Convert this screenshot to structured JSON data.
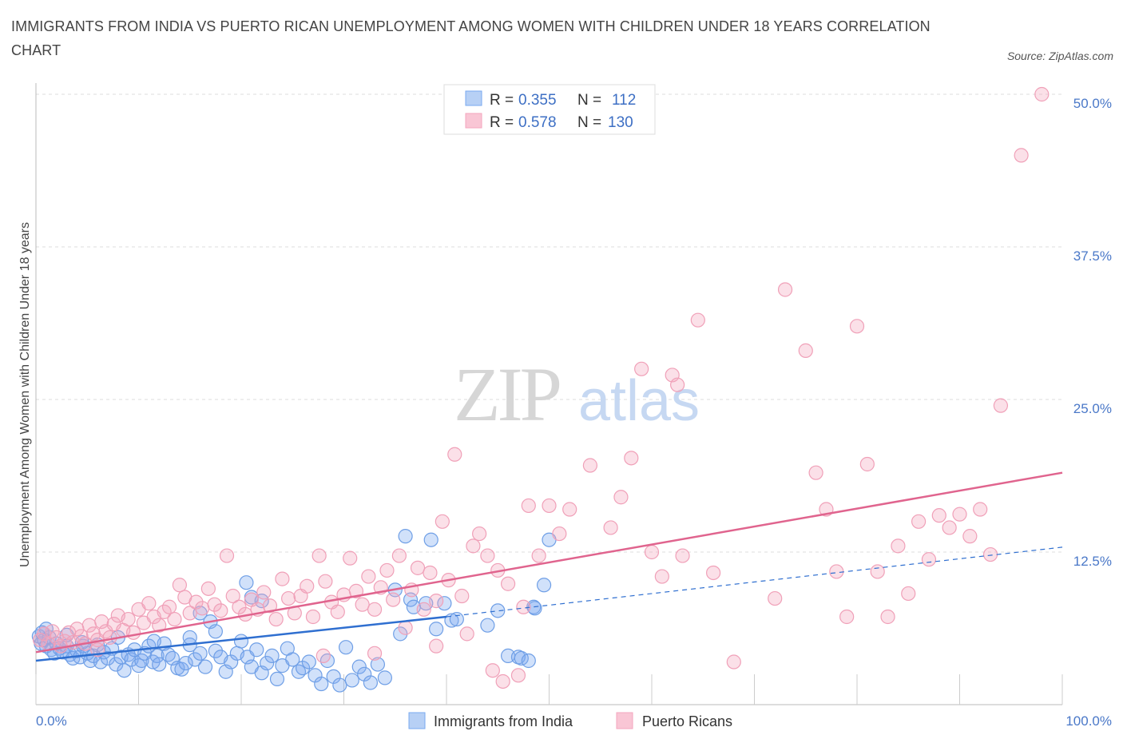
{
  "title": "IMMIGRANTS FROM INDIA VS PUERTO RICAN UNEMPLOYMENT AMONG WOMEN WITH CHILDREN UNDER 18 YEARS CORRELATION CHART",
  "source": "Source: ZipAtlas.com",
  "colors": {
    "india": "#7aaaf0",
    "india_line": "#2f6fd0",
    "pr": "#f4a6be",
    "pr_line": "#e0648e",
    "tick": "#4a78c8"
  },
  "watermark": {
    "zip": "ZIP",
    "atlas": "atlas"
  },
  "legend": {
    "r_label": "R =",
    "n_label": "N =",
    "rows": [
      {
        "r": "0.355",
        "n": "112"
      },
      {
        "r": "0.578",
        "n": "130"
      }
    ]
  },
  "chart_data": {
    "type": "scatter",
    "title": "IMMIGRANTS FROM INDIA VS PUERTO RICAN UNEMPLOYMENT AMONG WOMEN WITH CHILDREN UNDER 18 YEARS CORRELATION CHART",
    "xlabel": "",
    "ylabel": "Unemployment Among Women with Children Under 18 years",
    "xlim": [
      0,
      100
    ],
    "ylim": [
      0,
      50
    ],
    "x_tick_labels": [
      "0.0%",
      "100.0%"
    ],
    "y_tick_labels": [
      "12.5%",
      "25.0%",
      "37.5%",
      "50.0%"
    ],
    "y_ticks": [
      12.5,
      25,
      37.5,
      50
    ],
    "grid": true,
    "legend_position": "top-center",
    "series": [
      {
        "name": "Immigrants from India",
        "R": 0.355,
        "N": 112,
        "trend": {
          "x0": 0,
          "y0": 3.6,
          "x1": 40,
          "y1": 7.2,
          "x_dash_end": 100,
          "y_dash_end": 12.9
        },
        "points": [
          [
            0.3,
            5.6
          ],
          [
            0.5,
            5.0
          ],
          [
            0.8,
            5.3
          ],
          [
            1.0,
            4.8
          ],
          [
            1.3,
            5.5
          ],
          [
            1.5,
            4.5
          ],
          [
            1.8,
            4.2
          ],
          [
            2.0,
            5.0
          ],
          [
            2.3,
            4.6
          ],
          [
            2.6,
            4.3
          ],
          [
            3.0,
            4.8
          ],
          [
            3.3,
            4.1
          ],
          [
            3.6,
            3.8
          ],
          [
            4.0,
            4.4
          ],
          [
            4.3,
            3.9
          ],
          [
            4.6,
            4.8
          ],
          [
            5.0,
            4.2
          ],
          [
            5.3,
            3.6
          ],
          [
            5.6,
            4.0
          ],
          [
            6.0,
            4.9
          ],
          [
            6.3,
            3.5
          ],
          [
            6.6,
            4.3
          ],
          [
            7.0,
            3.8
          ],
          [
            7.4,
            4.6
          ],
          [
            7.8,
            3.3
          ],
          [
            8.0,
            5.5
          ],
          [
            8.3,
            3.9
          ],
          [
            8.6,
            2.8
          ],
          [
            9.0,
            4.1
          ],
          [
            9.3,
            3.7
          ],
          [
            9.6,
            4.5
          ],
          [
            10.0,
            3.2
          ],
          [
            10.3,
            3.6
          ],
          [
            10.6,
            4.2
          ],
          [
            11.0,
            4.8
          ],
          [
            11.4,
            3.5
          ],
          [
            11.8,
            4.0
          ],
          [
            12.0,
            3.3
          ],
          [
            12.5,
            5.0
          ],
          [
            12.9,
            4.1
          ],
          [
            13.3,
            3.8
          ],
          [
            13.8,
            3.0
          ],
          [
            14.2,
            2.9
          ],
          [
            14.6,
            3.4
          ],
          [
            15.0,
            4.9
          ],
          [
            15.5,
            3.7
          ],
          [
            16.0,
            4.2
          ],
          [
            16.5,
            3.1
          ],
          [
            17.0,
            6.8
          ],
          [
            17.5,
            4.4
          ],
          [
            18.0,
            3.9
          ],
          [
            18.5,
            2.7
          ],
          [
            19.0,
            3.5
          ],
          [
            19.6,
            4.2
          ],
          [
            20.0,
            5.2
          ],
          [
            20.6,
            3.9
          ],
          [
            21.0,
            3.1
          ],
          [
            21.5,
            4.5
          ],
          [
            22.0,
            2.6
          ],
          [
            22.5,
            3.4
          ],
          [
            23.0,
            4.0
          ],
          [
            23.5,
            2.1
          ],
          [
            24.0,
            3.2
          ],
          [
            24.5,
            4.6
          ],
          [
            25.0,
            3.7
          ],
          [
            25.6,
            2.7
          ],
          [
            26.0,
            3.0
          ],
          [
            26.6,
            3.5
          ],
          [
            27.2,
            2.4
          ],
          [
            27.8,
            1.7
          ],
          [
            28.4,
            3.6
          ],
          [
            29.0,
            2.3
          ],
          [
            29.6,
            1.6
          ],
          [
            30.2,
            4.7
          ],
          [
            30.8,
            2.0
          ],
          [
            31.5,
            3.1
          ],
          [
            32.0,
            2.5
          ],
          [
            32.6,
            1.8
          ],
          [
            33.3,
            3.3
          ],
          [
            34.0,
            2.2
          ],
          [
            35.5,
            5.8
          ],
          [
            36.5,
            8.6
          ],
          [
            36.8,
            8.0
          ],
          [
            35.0,
            9.4
          ],
          [
            38.0,
            8.3
          ],
          [
            39.0,
            6.2
          ],
          [
            39.8,
            8.3
          ],
          [
            40.5,
            6.9
          ],
          [
            41.0,
            7.0
          ],
          [
            44.0,
            6.5
          ],
          [
            45.0,
            7.7
          ],
          [
            46.0,
            4.0
          ],
          [
            47.0,
            3.9
          ],
          [
            47.3,
            3.8
          ],
          [
            48.0,
            3.6
          ],
          [
            48.5,
            8.0
          ],
          [
            48.6,
            7.9
          ],
          [
            49.5,
            9.8
          ],
          [
            50.0,
            13.5
          ],
          [
            38.5,
            13.5
          ],
          [
            36.0,
            13.8
          ],
          [
            20.5,
            10.0
          ],
          [
            21.0,
            8.8
          ],
          [
            22.0,
            8.5
          ],
          [
            16.0,
            7.5
          ],
          [
            17.5,
            6.0
          ],
          [
            15.0,
            5.5
          ],
          [
            11.5,
            5.2
          ],
          [
            3.0,
            5.7
          ],
          [
            1.0,
            6.2
          ],
          [
            0.6,
            5.9
          ],
          [
            4.5,
            5.1
          ]
        ]
      },
      {
        "name": "Puerto Ricans",
        "R": 0.578,
        "N": 130,
        "trend": {
          "x0": 0,
          "y0": 4.3,
          "x1": 100,
          "y1": 19.0
        },
        "points": [
          [
            0.4,
            5.3
          ],
          [
            0.8,
            5.8
          ],
          [
            1.2,
            5.0
          ],
          [
            1.6,
            6.0
          ],
          [
            2.0,
            5.5
          ],
          [
            2.4,
            4.8
          ],
          [
            2.8,
            5.2
          ],
          [
            3.2,
            5.9
          ],
          [
            3.6,
            5.1
          ],
          [
            4.0,
            6.2
          ],
          [
            4.4,
            5.6
          ],
          [
            4.8,
            5.0
          ],
          [
            5.2,
            6.5
          ],
          [
            5.6,
            5.8
          ],
          [
            6.0,
            5.3
          ],
          [
            6.4,
            6.8
          ],
          [
            6.8,
            6.0
          ],
          [
            7.2,
            5.5
          ],
          [
            7.6,
            6.6
          ],
          [
            8.0,
            7.3
          ],
          [
            8.5,
            6.1
          ],
          [
            9.0,
            7.0
          ],
          [
            9.5,
            5.9
          ],
          [
            10.0,
            7.8
          ],
          [
            10.5,
            6.7
          ],
          [
            11.0,
            8.3
          ],
          [
            11.5,
            7.2
          ],
          [
            12.0,
            6.5
          ],
          [
            12.5,
            7.6
          ],
          [
            13.0,
            8.0
          ],
          [
            13.5,
            7.0
          ],
          [
            14.0,
            9.8
          ],
          [
            14.5,
            8.8
          ],
          [
            15.0,
            7.5
          ],
          [
            15.6,
            8.4
          ],
          [
            16.2,
            7.9
          ],
          [
            16.8,
            9.5
          ],
          [
            17.4,
            8.2
          ],
          [
            18.0,
            7.7
          ],
          [
            18.6,
            12.2
          ],
          [
            19.2,
            8.9
          ],
          [
            19.8,
            8.0
          ],
          [
            20.4,
            7.4
          ],
          [
            21.0,
            8.6
          ],
          [
            21.6,
            7.8
          ],
          [
            22.2,
            9.2
          ],
          [
            22.8,
            8.1
          ],
          [
            23.4,
            7.0
          ],
          [
            24.0,
            10.3
          ],
          [
            24.6,
            8.7
          ],
          [
            25.2,
            7.5
          ],
          [
            25.8,
            8.9
          ],
          [
            26.4,
            9.7
          ],
          [
            27.0,
            7.2
          ],
          [
            27.6,
            12.2
          ],
          [
            28.2,
            10.1
          ],
          [
            28.8,
            8.4
          ],
          [
            29.4,
            7.6
          ],
          [
            30.0,
            9.0
          ],
          [
            30.6,
            12.0
          ],
          [
            31.2,
            9.3
          ],
          [
            31.8,
            8.2
          ],
          [
            32.4,
            10.5
          ],
          [
            33.0,
            7.8
          ],
          [
            33.6,
            9.6
          ],
          [
            34.2,
            11.0
          ],
          [
            34.8,
            8.6
          ],
          [
            35.4,
            12.2
          ],
          [
            36.0,
            6.3
          ],
          [
            36.6,
            9.4
          ],
          [
            37.2,
            11.2
          ],
          [
            37.8,
            7.8
          ],
          [
            38.4,
            10.8
          ],
          [
            39.0,
            8.5
          ],
          [
            39.6,
            15.0
          ],
          [
            40.2,
            10.2
          ],
          [
            40.8,
            20.5
          ],
          [
            41.5,
            8.9
          ],
          [
            42.0,
            5.8
          ],
          [
            42.6,
            13.0
          ],
          [
            43.2,
            14.0
          ],
          [
            44.0,
            12.2
          ],
          [
            45.0,
            11.0
          ],
          [
            46.0,
            9.9
          ],
          [
            47.5,
            8.0
          ],
          [
            48.0,
            16.3
          ],
          [
            49.0,
            12.2
          ],
          [
            50.0,
            16.3
          ],
          [
            51.0,
            14.0
          ],
          [
            52.0,
            16.0
          ],
          [
            54.0,
            19.6
          ],
          [
            56.0,
            14.5
          ],
          [
            57.0,
            17.0
          ],
          [
            58.0,
            20.2
          ],
          [
            59.0,
            27.5
          ],
          [
            60.0,
            12.5
          ],
          [
            61.0,
            10.5
          ],
          [
            62.0,
            27.0
          ],
          [
            62.5,
            26.2
          ],
          [
            63.0,
            12.2
          ],
          [
            64.5,
            31.5
          ],
          [
            66.0,
            10.8
          ],
          [
            68.0,
            3.5
          ],
          [
            72.0,
            8.7
          ],
          [
            73.0,
            34.0
          ],
          [
            75.0,
            29.0
          ],
          [
            76.0,
            19.0
          ],
          [
            77.0,
            16.0
          ],
          [
            78.0,
            10.9
          ],
          [
            79.0,
            7.2
          ],
          [
            80.0,
            31.0
          ],
          [
            81.0,
            19.7
          ],
          [
            82.0,
            10.9
          ],
          [
            83.0,
            7.2
          ],
          [
            84.0,
            13.0
          ],
          [
            85.0,
            9.1
          ],
          [
            86.0,
            15.0
          ],
          [
            87.0,
            11.9
          ],
          [
            88.0,
            15.5
          ],
          [
            89.0,
            14.5
          ],
          [
            90.0,
            15.6
          ],
          [
            91.0,
            13.8
          ],
          [
            92.0,
            16.0
          ],
          [
            93.0,
            12.3
          ],
          [
            94.0,
            24.5
          ],
          [
            96.0,
            45.0
          ],
          [
            98.0,
            50.0
          ],
          [
            39.0,
            4.8
          ],
          [
            44.5,
            2.8
          ],
          [
            45.5,
            1.9
          ],
          [
            47.0,
            2.4
          ],
          [
            33.0,
            4.2
          ],
          [
            28.0,
            4.0
          ],
          [
            6.0,
            4.5
          ]
        ]
      }
    ]
  },
  "bottom_legend": [
    "Immigrants from India",
    "Puerto Ricans"
  ]
}
